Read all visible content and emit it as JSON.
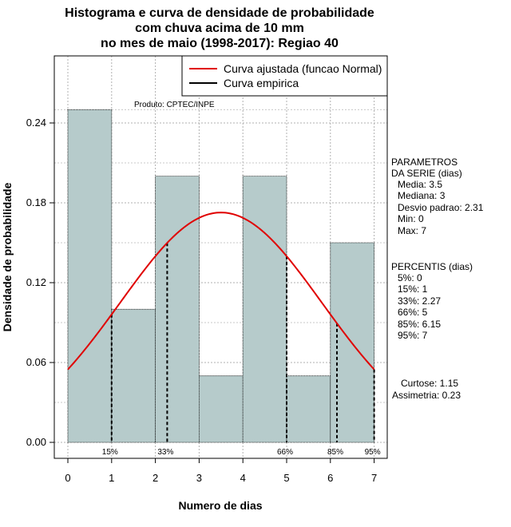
{
  "chart_data": {
    "type": "bar",
    "title_lines": [
      "Histograma e curva de densidade de probabilidade",
      "com chuva acima de 10 mm",
      "no mes de maio (1998-2017): Regiao 40"
    ],
    "xlabel": "Numero de dias",
    "ylabel": "Densidade de probabilidade",
    "x_ticks": [
      0,
      1,
      2,
      3,
      4,
      5,
      6,
      7
    ],
    "y_ticks": [
      "0.00",
      "0.06",
      "0.12",
      "0.18",
      "0.24"
    ],
    "xlim": [
      -0.2,
      7.2
    ],
    "ylim": [
      0,
      0.27
    ],
    "bins": [
      {
        "from": 0,
        "to": 1,
        "density": 0.25
      },
      {
        "from": 1,
        "to": 2,
        "density": 0.1
      },
      {
        "from": 2,
        "to": 3,
        "density": 0.2
      },
      {
        "from": 3,
        "to": 4,
        "density": 0.05
      },
      {
        "from": 4,
        "to": 5,
        "density": 0.2
      },
      {
        "from": 5,
        "to": 6,
        "density": 0.05
      },
      {
        "from": 6,
        "to": 7,
        "density": 0.15
      }
    ],
    "bar_color": "#b6cbcb",
    "curve_color": "#e00000",
    "normal_fit": {
      "mean": 3.5,
      "sd": 2.31
    },
    "percentile_lines": [
      {
        "label": "15%",
        "x": 1
      },
      {
        "label": "33%",
        "x": 2.27
      },
      {
        "label": "66%",
        "x": 5
      },
      {
        "label": "85%",
        "x": 6.15
      },
      {
        "label": "95%",
        "x": 7
      }
    ],
    "legend": [
      {
        "label": "Curva ajustada (funcao Normal)",
        "color": "#e00000"
      },
      {
        "label": "Curva empirica",
        "color": "#000000"
      }
    ],
    "product_label": "Produto: CPTEC/INPE"
  },
  "side_panel": {
    "params_title_1": "PARAMETROS",
    "params_title_2": "DA SERIE (dias)",
    "media": "Media: 3.5",
    "mediana": "Mediana: 3",
    "desvio": "Desvio padrao: 2.31",
    "min": "Min: 0",
    "max": "Max: 7",
    "percentis_title": "PERCENTIS (dias)",
    "p5": "5%: 0",
    "p15": "15%: 1",
    "p33": "33%: 2.27",
    "p66": "66%: 5",
    "p85": "85%: 6.15",
    "p95": "95%: 7",
    "curtose": "Curtose: 1.15",
    "assimetria": "Assimetria: 0.23"
  }
}
